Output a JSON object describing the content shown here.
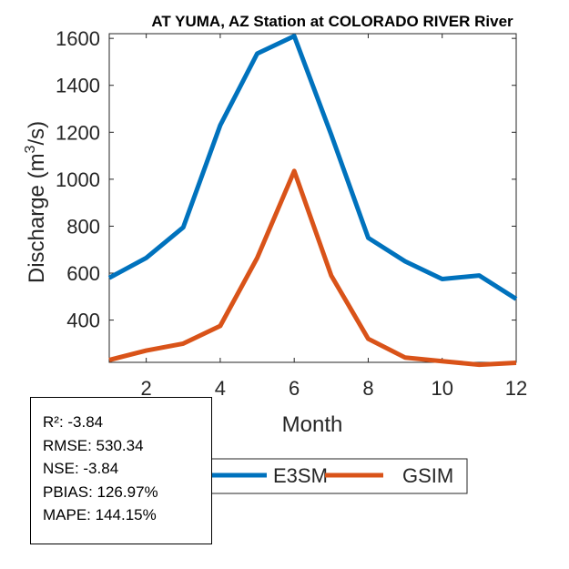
{
  "chart_data": {
    "type": "line",
    "title": "AT YUMA, AZ  Station at  COLORADO RIVER  River",
    "xlabel": "Month",
    "ylabel_prefix": "Discharge (m",
    "ylabel_sup": "3",
    "ylabel_suffix": "/s)",
    "xlim": [
      1,
      12
    ],
    "ylim": [
      220,
      1620
    ],
    "xticks": [
      2,
      4,
      6,
      8,
      10,
      12
    ],
    "yticks": [
      400,
      600,
      800,
      1000,
      1200,
      1400,
      1600
    ],
    "x": [
      1,
      2,
      3,
      4,
      5,
      6,
      7,
      8,
      9,
      10,
      11,
      12
    ],
    "series": [
      {
        "name": "E3SM",
        "color": "#0072BD",
        "values": [
          580,
          665,
          795,
          1230,
          1535,
          1610,
          1190,
          750,
          650,
          575,
          590,
          490
        ]
      },
      {
        "name": "GSIM",
        "color": "#D95319",
        "values": [
          230,
          270,
          300,
          375,
          665,
          1035,
          590,
          320,
          240,
          225,
          210,
          218
        ]
      }
    ]
  },
  "stats": {
    "r2": "R²: -3.84",
    "rmse": "RMSE: 530.34",
    "nse": "NSE: -3.84",
    "pbias": "PBIAS: 126.97%",
    "mape": "MAPE: 144.15%"
  }
}
